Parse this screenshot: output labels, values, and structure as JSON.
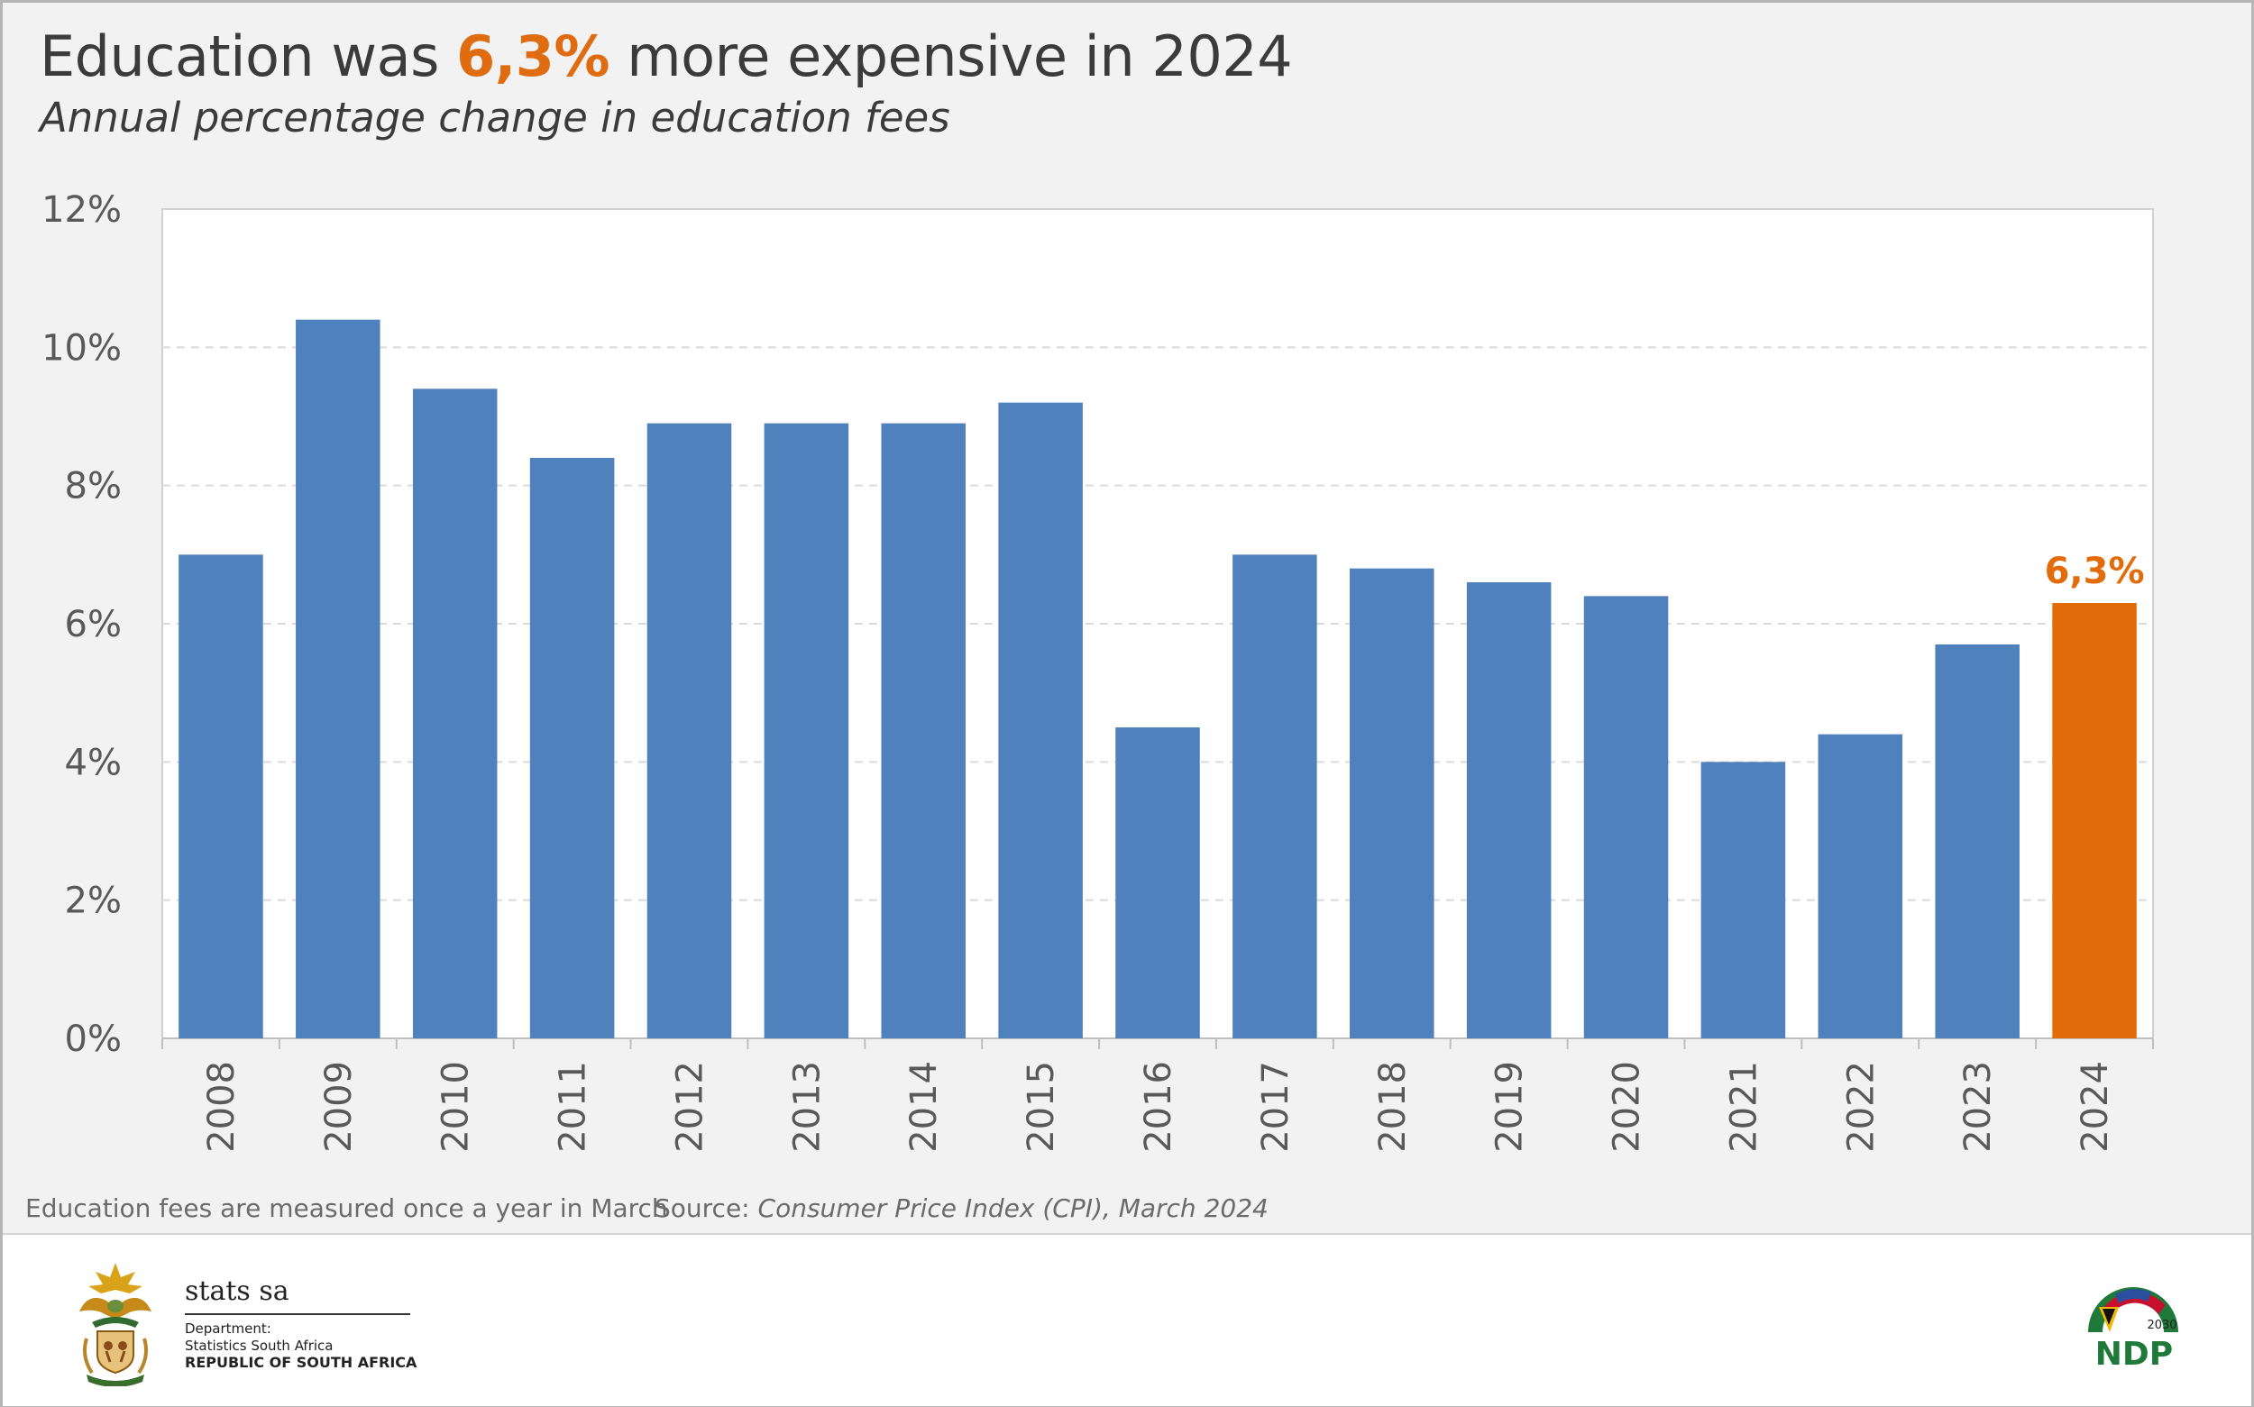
{
  "header": {
    "title_prefix": "Education was ",
    "title_highlight": "6,3%",
    "title_suffix": " more expensive in 2024",
    "subtitle": "Annual percentage change in education fees"
  },
  "chart_data": {
    "type": "bar",
    "title": "Education was 6,3% more expensive in 2024",
    "subtitle": "Annual percentage change in education fees",
    "xlabel": "",
    "ylabel": "",
    "categories": [
      "2008",
      "2009",
      "2010",
      "2011",
      "2012",
      "2013",
      "2014",
      "2015",
      "2016",
      "2017",
      "2018",
      "2019",
      "2020",
      "2021",
      "2022",
      "2023",
      "2024"
    ],
    "values": [
      7.0,
      10.4,
      9.4,
      8.4,
      8.9,
      8.9,
      8.9,
      9.2,
      4.5,
      7.0,
      6.8,
      6.6,
      6.4,
      4.0,
      4.4,
      5.7,
      6.3
    ],
    "ylim": [
      0,
      12
    ],
    "yticks": [
      0,
      2,
      4,
      6,
      8,
      10,
      12
    ],
    "ytick_labels": [
      "0%",
      "2%",
      "4%",
      "6%",
      "8%",
      "10%",
      "12%"
    ],
    "grid": true,
    "highlight_index": 16,
    "highlight_label": "6,3%",
    "colors": {
      "bar": "#4f81bd",
      "highlight": "#e36c0a",
      "grid": "#d9d9d9",
      "text": "#595959"
    }
  },
  "footer": {
    "note": "Education fees are measured once a year in March",
    "source_label": "Source: ",
    "source_text": "Consumer Price Index (CPI), March 2024",
    "org_name": "stats sa",
    "dept_line1": "Department:",
    "dept_line2": "Statistics South Africa",
    "dept_line3": "REPUBLIC OF SOUTH AFRICA",
    "ndp_year": "2030",
    "ndp_text": "NDP",
    "coat_of_arms_icon": "coat-of-arms-icon",
    "ndp_logo_icon": "ndp-logo-icon"
  }
}
